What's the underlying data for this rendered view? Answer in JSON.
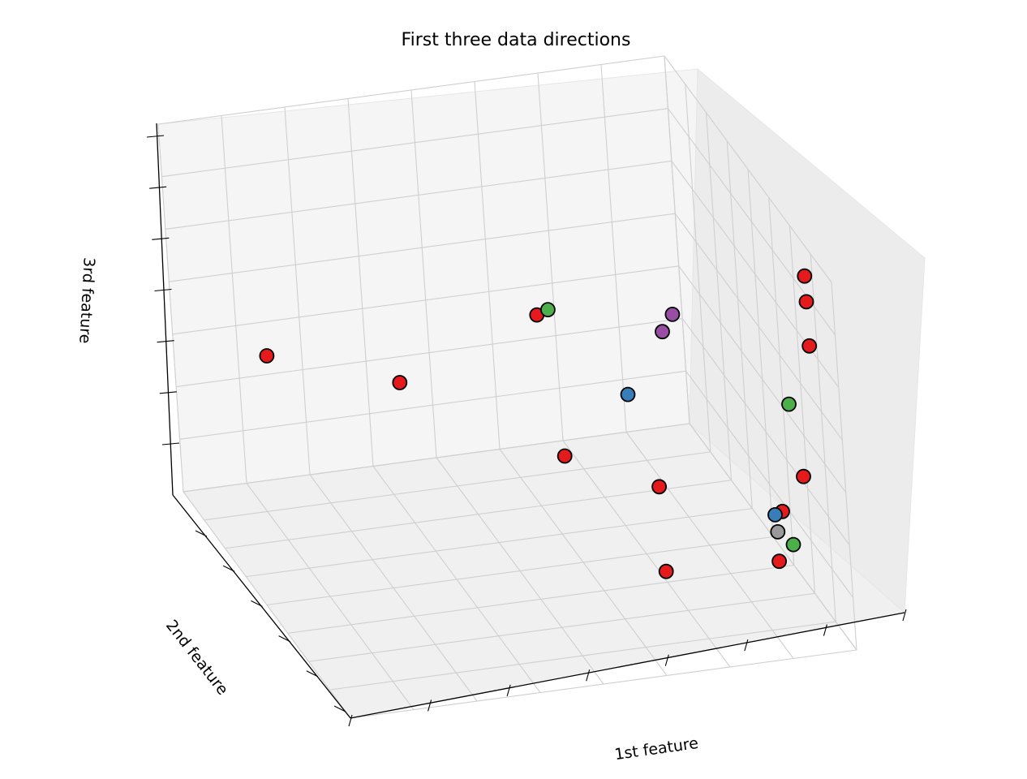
{
  "chart_data": {
    "type": "scatter",
    "title": "First three data directions",
    "xlabel": "1st feature",
    "ylabel": "2nd feature",
    "zlabel": "3rd feature",
    "projection": "3d",
    "grid": true,
    "legend": "none",
    "tick_labels": "none",
    "series": [
      {
        "color": "#e41a1c",
        "points": [
          {
            "x": 0.14,
            "y": 0.14,
            "z": 0.43
          },
          {
            "x": 0.37,
            "y": 0.23,
            "z": 0.37
          },
          {
            "x": 0.6,
            "y": 0.51,
            "z": 0.3
          },
          {
            "x": 0.76,
            "y": 0.58,
            "z": 0.23
          },
          {
            "x": 0.7,
            "y": 0.79,
            "z": 0.14
          },
          {
            "x": 0.6,
            "y": 0.39,
            "z": 0.61
          },
          {
            "x": 0.9,
            "y": 0.91,
            "z": 0.34
          },
          {
            "x": 0.96,
            "y": 0.96,
            "z": 1.0
          },
          {
            "x": 0.96,
            "y": 0.96,
            "z": 0.93
          },
          {
            "x": 0.96,
            "y": 0.96,
            "z": 0.81
          },
          {
            "x": 0.94,
            "y": 0.93,
            "z": 0.44
          },
          {
            "x": 0.89,
            "y": 0.9,
            "z": 0.2
          }
        ]
      },
      {
        "color": "#4daf4a",
        "points": [
          {
            "x": 0.64,
            "y": 0.33,
            "z": 0.58
          },
          {
            "x": 0.93,
            "y": 0.9,
            "z": 0.62
          },
          {
            "x": 0.92,
            "y": 0.9,
            "z": 0.24
          }
        ]
      },
      {
        "color": "#377eb8",
        "points": [
          {
            "x": 0.72,
            "y": 0.55,
            "z": 0.47
          },
          {
            "x": 0.9,
            "y": 0.86,
            "z": 0.3
          }
        ]
      },
      {
        "color": "#984ea3",
        "points": [
          {
            "x": 0.79,
            "y": 0.57,
            "z": 0.64
          },
          {
            "x": 0.8,
            "y": 0.61,
            "z": 0.71
          }
        ]
      },
      {
        "color": "#999999",
        "points": [
          {
            "x": 0.9,
            "y": 0.87,
            "z": 0.26
          }
        ]
      }
    ]
  }
}
